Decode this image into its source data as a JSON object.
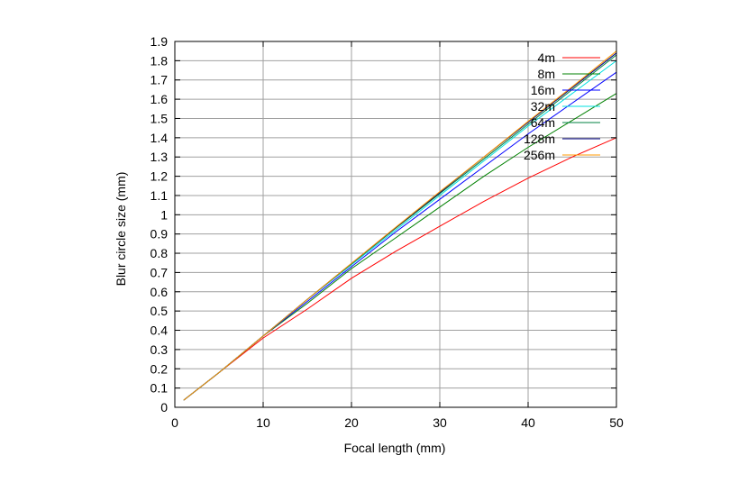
{
  "chart_data": {
    "type": "line",
    "xlabel": "Focal length (mm)",
    "ylabel": "Blur circle size (mm)",
    "xlim": [
      0,
      50
    ],
    "ylim": [
      0,
      1.9
    ],
    "x_ticks": [
      0,
      10,
      20,
      30,
      40,
      50
    ],
    "x_tick_labels": [
      "0",
      "10",
      "20",
      "30",
      "40",
      "50"
    ],
    "y_ticks": [
      0,
      0.1,
      0.2,
      0.3,
      0.4,
      0.5,
      0.6,
      0.7,
      0.8,
      0.9,
      1,
      1.1,
      1.2,
      1.3,
      1.4,
      1.5,
      1.6,
      1.7,
      1.8,
      1.9
    ],
    "y_tick_labels": [
      "0",
      "0.1",
      "0.2",
      "0.3",
      "0.4",
      "0.5",
      "0.6",
      "0.7",
      "0.8",
      "0.9",
      "1",
      "1.1",
      "1.2",
      "1.3",
      "1.4",
      "1.5",
      "1.6",
      "1.7",
      "1.8",
      "1.9"
    ],
    "grid": true,
    "legend_position": "top-right",
    "x": [
      1,
      5,
      10,
      15,
      20,
      25,
      30,
      35,
      40,
      45,
      50
    ],
    "series": [
      {
        "name": "4m",
        "color": "#ff0000",
        "values": [
          0.037,
          0.18,
          0.36,
          0.51,
          0.67,
          0.81,
          0.94,
          1.07,
          1.19,
          1.3,
          1.4
        ]
      },
      {
        "name": "8m",
        "color": "#008000",
        "values": [
          0.037,
          0.18,
          0.37,
          0.54,
          0.72,
          0.88,
          1.04,
          1.2,
          1.35,
          1.49,
          1.63
        ]
      },
      {
        "name": "16m",
        "color": "#0000ff",
        "values": [
          0.037,
          0.18,
          0.37,
          0.55,
          0.73,
          0.91,
          1.08,
          1.25,
          1.42,
          1.58,
          1.74
        ]
      },
      {
        "name": "32m",
        "color": "#00e0e0",
        "values": [
          0.037,
          0.18,
          0.37,
          0.56,
          0.74,
          0.92,
          1.1,
          1.28,
          1.46,
          1.63,
          1.8
        ]
      },
      {
        "name": "64m",
        "color": "#008040",
        "values": [
          0.037,
          0.18,
          0.37,
          0.56,
          0.745,
          0.93,
          1.11,
          1.29,
          1.47,
          1.65,
          1.83
        ]
      },
      {
        "name": "128m",
        "color": "#000080",
        "values": [
          0.037,
          0.18,
          0.37,
          0.56,
          0.747,
          0.933,
          1.115,
          1.3,
          1.48,
          1.66,
          1.84
        ]
      },
      {
        "name": "256m",
        "color": "#ff9900",
        "values": [
          0.037,
          0.18,
          0.37,
          0.56,
          0.748,
          0.935,
          1.12,
          1.3,
          1.485,
          1.665,
          1.85
        ]
      }
    ]
  }
}
